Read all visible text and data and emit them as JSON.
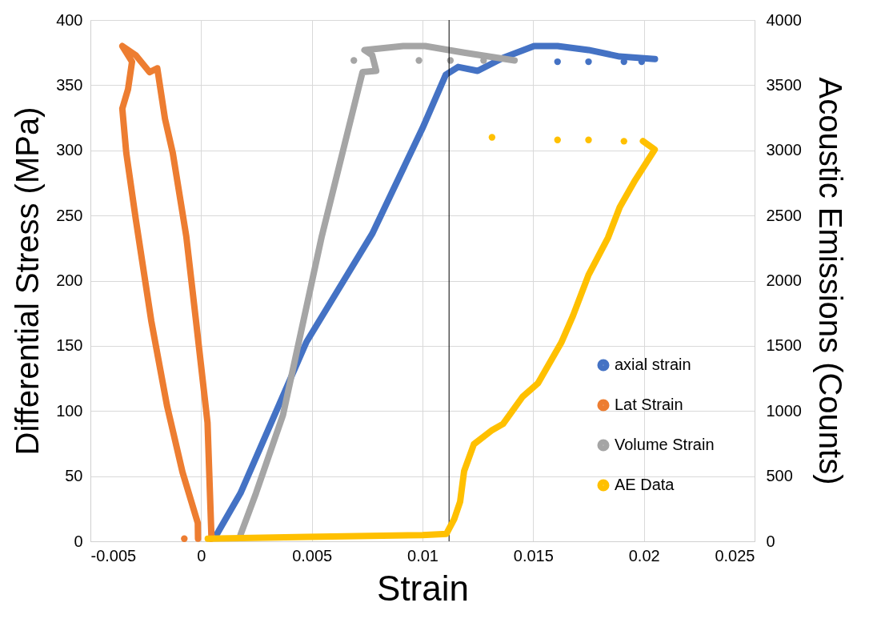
{
  "chart_data": {
    "type": "line",
    "xlabel": "Strain",
    "ylabel": "Differential Stress (MPa)",
    "y2label": "Acoustic Emissions (Counts)",
    "xlim": [
      -0.005,
      0.025
    ],
    "xticks": [
      -0.005,
      0,
      0.005,
      0.01,
      0.015,
      0.02,
      0.025
    ],
    "ylim": [
      0,
      400
    ],
    "yticks": [
      0,
      50,
      100,
      150,
      200,
      250,
      300,
      350,
      400
    ],
    "y2lim": [
      0,
      4000
    ],
    "y2ticks": [
      0,
      500,
      1000,
      1500,
      2000,
      2500,
      3000,
      3500,
      4000
    ],
    "grid": true,
    "legend": "bottom right",
    "line_style": "solid",
    "ref_lines": [
      {
        "axis": "x",
        "value": 0.0112,
        "color": "#000000"
      }
    ],
    "series": [
      {
        "name": "axial strain",
        "color": "#4472c4",
        "x": [
          0.00073,
          0.00178,
          0.00476,
          0.00773,
          0.01,
          0.01105,
          0.01161,
          0.01249,
          0.01364,
          0.01504,
          0.0161,
          0.0175,
          0.0189,
          0.0205
        ],
        "values": [
          6,
          37,
          153,
          236,
          317,
          358,
          364,
          361,
          371,
          380,
          380,
          377,
          372,
          370
        ]
      },
      {
        "name": "Lat Strain",
        "color": "#ed7d31",
        "x": [
          0.00047,
          0.00029,
          -0.00023,
          -0.00067,
          -0.00128,
          -0.00163,
          -0.00198,
          -0.00233,
          -0.00295,
          -0.00356,
          -0.00312,
          -0.0033,
          -0.00356,
          -0.00338,
          -0.00295,
          -0.00225,
          -0.00154,
          -0.00084,
          -0.00015,
          -0.00014
        ],
        "values": [
          2,
          91,
          169,
          234,
          298,
          324,
          363,
          360,
          373,
          380,
          368,
          347,
          332,
          298,
          247,
          169,
          104,
          53,
          14,
          2
        ]
      },
      {
        "name": "Volume Strain",
        "color": "#a5a5a5",
        "x": [
          0.00178,
          0.00248,
          0.0037,
          0.00545,
          0.00729,
          0.00791,
          0.00773,
          0.00738,
          0.00913,
          0.01012,
          0.01188,
          0.01416
        ],
        "values": [
          5,
          37,
          97,
          234,
          360,
          361,
          373,
          377,
          380,
          380,
          375,
          369
        ]
      },
      {
        "name": "AE Data",
        "color": "#ffc000",
        "axis": "y2",
        "x": [
          0.0003,
          0.00476,
          0.01,
          0.01108,
          0.01144,
          0.0117,
          0.01188,
          0.01232,
          0.01311,
          0.01364,
          0.01452,
          0.01522,
          0.01627,
          0.0168,
          0.0175,
          0.01838,
          0.01891,
          0.01961,
          0.02049,
          0.01996
        ],
        "values": [
          20,
          34,
          48,
          57,
          173,
          304,
          539,
          745,
          849,
          901,
          1109,
          1213,
          1525,
          1732,
          2044,
          2330,
          2564,
          2772,
          3006,
          3071
        ]
      },
      {
        "color": "#4472c4",
        "type": "scatter",
        "x": [
          0.0161,
          0.0175,
          0.0191,
          0.0199
        ],
        "values": [
          368,
          368,
          368,
          368
        ]
      },
      {
        "color": "#ed7d31",
        "type": "scatter",
        "x": [
          -0.00076
        ],
        "values": [
          2
        ]
      },
      {
        "color": "#a5a5a5",
        "type": "scatter",
        "x": [
          0.0069,
          0.00984,
          0.01126,
          0.01276
        ],
        "values": [
          369,
          369,
          369,
          369
        ]
      },
      {
        "color": "#ffc000",
        "type": "scatter",
        "axis": "y2",
        "x": [
          0.01314,
          0.0161,
          0.0175,
          0.0191
        ],
        "values": [
          3100,
          3080,
          3080,
          3070
        ]
      }
    ]
  }
}
